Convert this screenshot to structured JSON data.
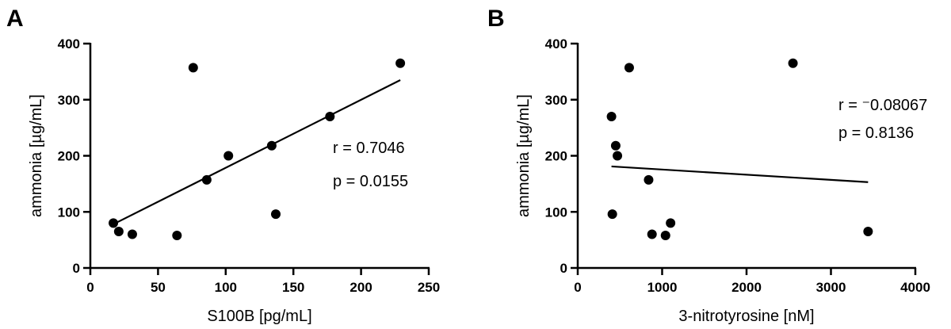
{
  "chart_data": [
    {
      "type": "scatter",
      "panel_label": "A",
      "xlabel": "S100B [pg/mL]",
      "ylabel": "ammonia [µg/mL]",
      "xlim": [
        0,
        250
      ],
      "ylim": [
        0,
        400
      ],
      "xticks": [
        0,
        50,
        100,
        150,
        200,
        250
      ],
      "yticks": [
        0,
        100,
        200,
        300,
        400
      ],
      "x": [
        17,
        21,
        31,
        64,
        76,
        86,
        102,
        134,
        137,
        177,
        229
      ],
      "y": [
        80,
        65,
        60,
        58,
        357,
        157,
        200,
        218,
        96,
        270,
        365
      ],
      "fit_line": {
        "x": [
          17,
          229
        ],
        "y": [
          78,
          335
        ]
      },
      "stats": {
        "r": "r = 0.7046",
        "p": "p = 0.0155"
      }
    },
    {
      "type": "scatter",
      "panel_label": "B",
      "xlabel": "3-nitrotyrosine [nM]",
      "ylabel": "ammonia [µg/mL]",
      "xlim": [
        0,
        4000
      ],
      "ylim": [
        0,
        400
      ],
      "xticks": [
        0,
        1000,
        2000,
        3000,
        4000
      ],
      "yticks": [
        0,
        100,
        200,
        300,
        400
      ],
      "x": [
        400,
        410,
        450,
        470,
        610,
        840,
        880,
        1040,
        1100,
        2550,
        3440
      ],
      "y": [
        270,
        96,
        218,
        200,
        357,
        157,
        60,
        58,
        80,
        365,
        65
      ],
      "fit_line": {
        "x": [
          400,
          3440
        ],
        "y": [
          181,
          153
        ]
      },
      "stats": {
        "r": "r = ⁻0.08067",
        "p": "p = 0.8136"
      }
    }
  ]
}
